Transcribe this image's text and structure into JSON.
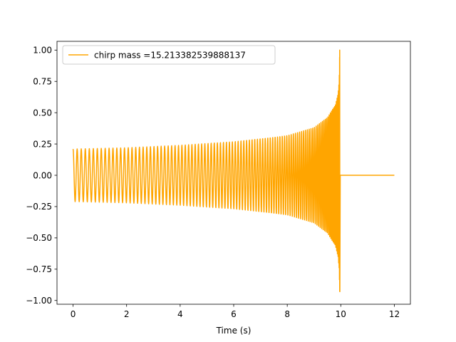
{
  "chart_data": {
    "type": "line",
    "title": "",
    "xlabel": "Time (s)",
    "ylabel": "",
    "xlim": [
      -0.6,
      12.6
    ],
    "ylim": [
      -1.03,
      1.07
    ],
    "x_ticks": [
      0,
      2,
      4,
      6,
      8,
      10,
      12
    ],
    "x_tick_labels": [
      "0",
      "2",
      "4",
      "6",
      "8",
      "10",
      "12"
    ],
    "y_ticks": [
      -1.0,
      -0.75,
      -0.5,
      -0.25,
      0.0,
      0.25,
      0.5,
      0.75,
      1.0
    ],
    "y_tick_labels": [
      "−1.00",
      "−0.75",
      "−0.50",
      "−0.25",
      "0.00",
      "0.25",
      "0.50",
      "0.75",
      "1.00"
    ],
    "grid": false,
    "legend": {
      "position": "top-left"
    },
    "series": [
      {
        "name": "chirp mass =15.213382539888137",
        "color": "#ffa500",
        "description_points": {
          "x": [
            0.0,
            2.0,
            4.0,
            6.0,
            8.0,
            9.0,
            9.5,
            9.8,
            9.9,
            9.94,
            9.96,
            10.0,
            12.0
          ],
          "upper_envelope": [
            0.21,
            0.22,
            0.24,
            0.27,
            0.32,
            0.38,
            0.46,
            0.57,
            0.65,
            0.75,
            1.0,
            0.0,
            0.0
          ],
          "lower_envelope": [
            -0.21,
            -0.22,
            -0.24,
            -0.27,
            -0.32,
            -0.38,
            -0.46,
            -0.57,
            -0.65,
            -0.75,
            -0.93,
            0.0,
            0.0
          ]
        },
        "merger_time": 9.96,
        "end_time": 12.0
      }
    ]
  }
}
